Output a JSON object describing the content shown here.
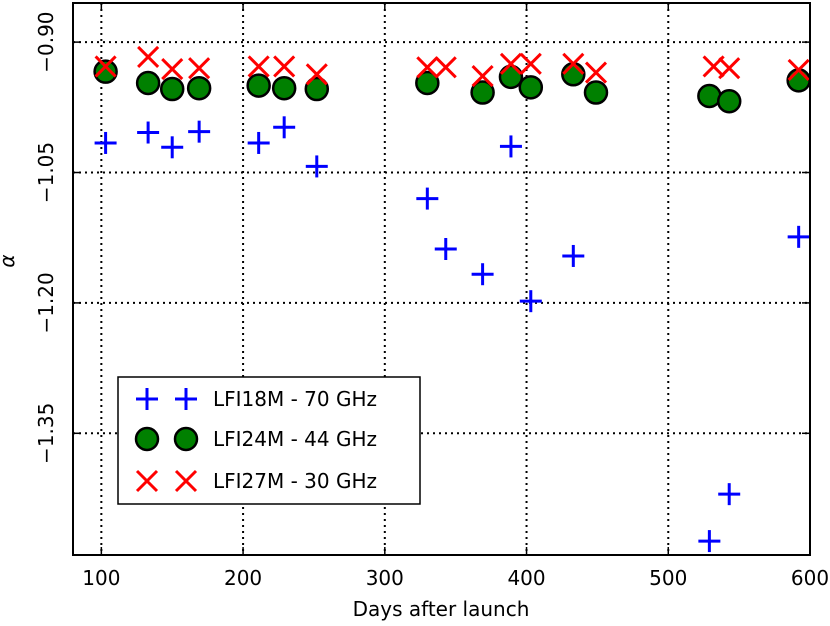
{
  "chart_data": {
    "type": "scatter",
    "title": "",
    "xlabel": "Days after launch",
    "ylabel": "α",
    "xlim": [
      80,
      600
    ],
    "ylim": [
      -1.49,
      -0.855
    ],
    "xticks": [
      100,
      200,
      300,
      400,
      500,
      600
    ],
    "xtick_labels": [
      "100",
      "200",
      "300",
      "400",
      "500",
      "600"
    ],
    "yticks": [
      -0.9,
      -1.05,
      -1.2,
      -1.35
    ],
    "ytick_labels": [
      "−0.90",
      "−1.05",
      "−1.20",
      "−1.35"
    ],
    "grid": true,
    "legend_position": "lower-left",
    "series": [
      {
        "name": "LFI18M - 70 GHz",
        "marker": "plus",
        "color": "#0000ff",
        "x": [
          103,
          133,
          150,
          169,
          211,
          229,
          252,
          330,
          343,
          369,
          389,
          403,
          433,
          529,
          543,
          592
        ],
        "y": [
          -1.016,
          -1.004,
          -1.021,
          -1.003,
          -1.016,
          -0.998,
          -1.043,
          -1.08,
          -1.138,
          -1.167,
          -1.02,
          -1.198,
          -1.146,
          -1.474,
          -1.42,
          -1.124
        ]
      },
      {
        "name": "LFI24M - 44 GHz",
        "marker": "circle",
        "color": "#008000",
        "x": [
          103,
          133,
          150,
          169,
          211,
          229,
          252,
          330,
          369,
          389,
          403,
          433,
          449,
          529,
          543,
          592
        ],
        "y": [
          -0.934,
          -0.947,
          -0.954,
          -0.953,
          -0.95,
          -0.953,
          -0.954,
          -0.947,
          -0.958,
          -0.94,
          -0.952,
          -0.937,
          -0.958,
          -0.962,
          -0.968,
          -0.944
        ]
      },
      {
        "name": "LFI27M - 30 GHz",
        "marker": "x",
        "color": "#ff0000",
        "x": [
          103,
          133,
          150,
          169,
          211,
          229,
          252,
          330,
          343,
          369,
          389,
          403,
          433,
          449,
          532,
          543,
          592
        ],
        "y": [
          -0.928,
          -0.917,
          -0.931,
          -0.93,
          -0.928,
          -0.928,
          -0.937,
          -0.929,
          -0.929,
          -0.939,
          -0.925,
          -0.925,
          -0.925,
          -0.935,
          -0.928,
          -0.93,
          -0.932
        ]
      }
    ]
  }
}
